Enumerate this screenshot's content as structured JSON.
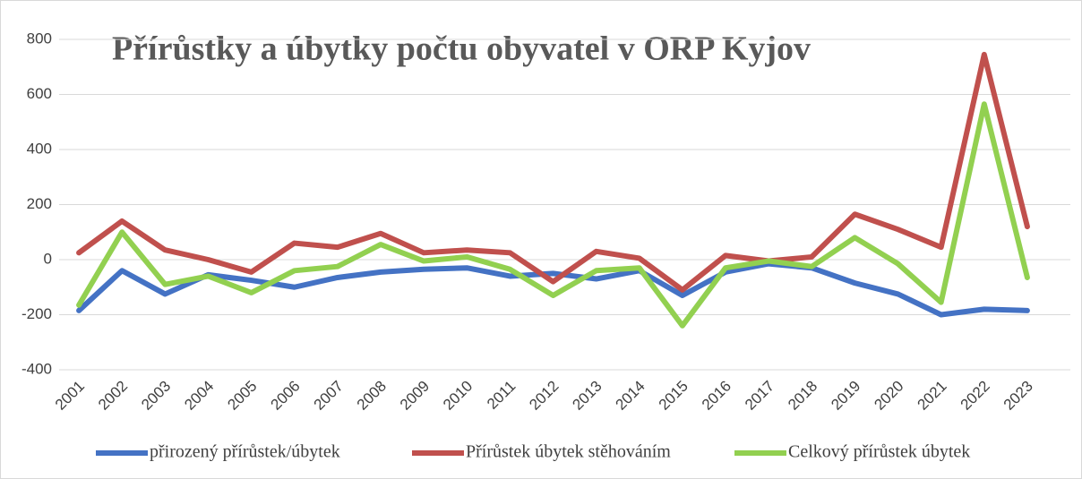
{
  "chart_data": {
    "type": "line",
    "title": "Přírůstky a úbytky počtu obyvatel v ORP Kyjov",
    "categories": [
      "2001",
      "2002",
      "2003",
      "2004",
      "2005",
      "2006",
      "2007",
      "2008",
      "2009",
      "2010",
      "2011",
      "2012",
      "2013",
      "2014",
      "2015",
      "2016",
      "2017",
      "2018",
      "2019",
      "2020",
      "2021",
      "2022",
      "2023"
    ],
    "series": [
      {
        "name": "přirozený přírůstek/úbytek",
        "color": "#4472c4",
        "values": [
          -185,
          -40,
          -125,
          -55,
          -75,
          -100,
          -65,
          -45,
          -35,
          -30,
          -60,
          -50,
          -70,
          -40,
          -130,
          -45,
          -15,
          -30,
          -85,
          -125,
          -200,
          -180,
          -185
        ]
      },
      {
        "name": "Přírůstek úbytek stěhováním",
        "color": "#c0504d",
        "values": [
          25,
          140,
          35,
          0,
          -45,
          60,
          45,
          95,
          25,
          35,
          25,
          -80,
          30,
          5,
          -110,
          15,
          -5,
          10,
          165,
          110,
          45,
          745,
          120
        ]
      },
      {
        "name": "Celkový přírůstek úbytek",
        "color": "#92d050",
        "values": [
          -165,
          100,
          -90,
          -60,
          -120,
          -40,
          -25,
          55,
          -5,
          10,
          -35,
          -130,
          -40,
          -30,
          -240,
          -30,
          -5,
          -25,
          80,
          -15,
          -155,
          565,
          -65
        ]
      }
    ],
    "ylim": [
      -400,
      800
    ],
    "yticks": [
      -400,
      -200,
      0,
      200,
      400,
      600,
      800
    ],
    "grid": true,
    "legend": "bottom"
  }
}
